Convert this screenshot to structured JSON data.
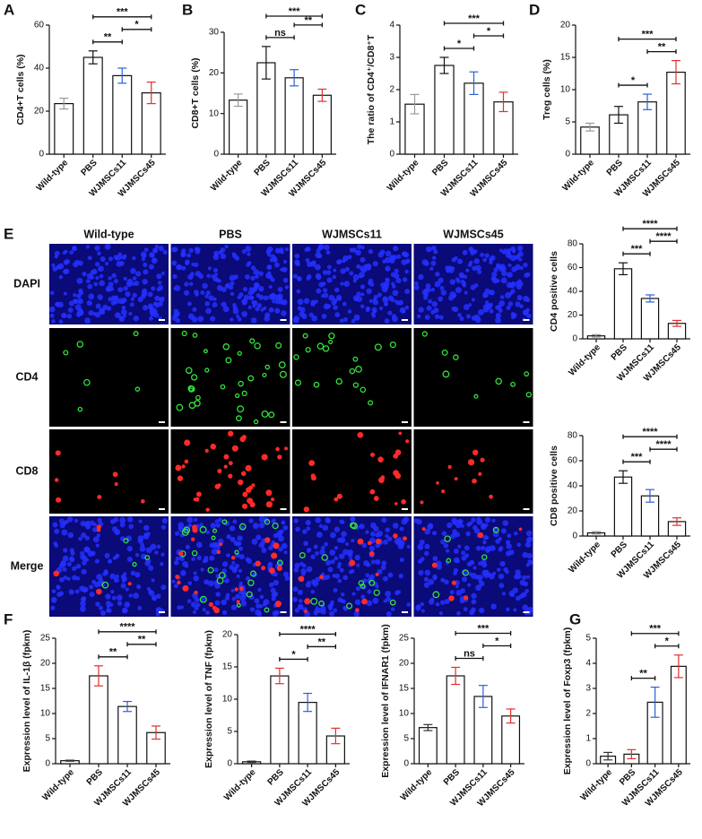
{
  "figure_e_images": {
    "panel": "E",
    "columns": [
      "Wild-type",
      "PBS",
      "WJMSCs11",
      "WJMSCs45"
    ],
    "rows": [
      "DAPI",
      "CD4",
      "CD8",
      "Merge"
    ]
  },
  "chart_data": [
    {
      "type": "bar",
      "panel": "A",
      "ylabel": "CD4+T cells (%)",
      "categories": [
        "Wild-type",
        "PBS",
        "WJMSCs11",
        "WJMSCs45"
      ],
      "values": [
        23.5,
        45,
        36.5,
        28.5
      ],
      "errors": [
        2.5,
        3,
        3.5,
        5
      ],
      "error_colors": [
        "#999999",
        "#111111",
        "#2d5fd6",
        "#e03030"
      ],
      "ylim": [
        0,
        60
      ],
      "yticks": [
        0,
        20,
        40,
        60
      ],
      "annotations": [
        {
          "label": "***",
          "from": "PBS",
          "to": "WJMSCs45"
        },
        {
          "label": "**",
          "from": "PBS",
          "to": "WJMSCs11"
        },
        {
          "label": "*",
          "from": "WJMSCs11",
          "to": "WJMSCs45"
        }
      ]
    },
    {
      "type": "bar",
      "panel": "B",
      "ylabel": "CD8+T cells (%)",
      "categories": [
        "Wild-type",
        "PBS",
        "WJMSCs11",
        "WJMSCs45"
      ],
      "values": [
        13.3,
        22.5,
        18.8,
        14.5
      ],
      "errors": [
        1.5,
        4,
        2,
        1.5
      ],
      "error_colors": [
        "#999999",
        "#111111",
        "#2d5fd6",
        "#e03030"
      ],
      "ylim": [
        0,
        30
      ],
      "yticks": [
        0,
        10,
        20,
        30
      ],
      "annotations": [
        {
          "label": "***",
          "from": "PBS",
          "to": "WJMSCs45"
        },
        {
          "label": "ns",
          "from": "PBS",
          "to": "WJMSCs11"
        },
        {
          "label": "**",
          "from": "WJMSCs11",
          "to": "WJMSCs45"
        }
      ]
    },
    {
      "type": "bar",
      "panel": "C",
      "ylabel": "The ratio of CD4⁺/CD8⁺T",
      "categories": [
        "Wild-type",
        "PBS",
        "WJMSCs11",
        "WJMSCs45"
      ],
      "values": [
        1.55,
        2.75,
        2.2,
        1.62
      ],
      "errors": [
        0.3,
        0.25,
        0.35,
        0.3
      ],
      "error_colors": [
        "#999999",
        "#111111",
        "#2d5fd6",
        "#e03030"
      ],
      "ylim": [
        0,
        4
      ],
      "yticks": [
        0,
        1,
        2,
        3,
        4
      ],
      "annotations": [
        {
          "label": "***",
          "from": "PBS",
          "to": "WJMSCs45"
        },
        {
          "label": "*",
          "from": "PBS",
          "to": "WJMSCs11"
        },
        {
          "label": "*",
          "from": "WJMSCs11",
          "to": "WJMSCs45"
        }
      ]
    },
    {
      "type": "bar",
      "panel": "D",
      "ylabel": "Treg cells (%)",
      "categories": [
        "Wild-type",
        "PBS",
        "WJMSCs11",
        "WJMSCs45"
      ],
      "values": [
        4.2,
        6.1,
        8.1,
        12.7
      ],
      "errors": [
        0.6,
        1.3,
        1.2,
        1.8
      ],
      "error_colors": [
        "#999999",
        "#111111",
        "#2d5fd6",
        "#e03030"
      ],
      "ylim": [
        0,
        20
      ],
      "yticks": [
        0,
        5,
        10,
        15,
        20
      ],
      "annotations": [
        {
          "label": "***",
          "from": "PBS",
          "to": "WJMSCs45"
        },
        {
          "label": "*",
          "from": "PBS",
          "to": "WJMSCs11"
        },
        {
          "label": "**",
          "from": "WJMSCs11",
          "to": "WJMSCs45"
        }
      ]
    },
    {
      "type": "bar",
      "ylabel": "CD4 positive cells",
      "categories": [
        "Wild-type",
        "PBS",
        "WJMSCs11",
        "WJMSCs45"
      ],
      "values": [
        2.5,
        59,
        34,
        13
      ],
      "errors": [
        1,
        5,
        3,
        2.5
      ],
      "error_colors": [
        "#999999",
        "#111111",
        "#2d5fd6",
        "#e03030"
      ],
      "ylim": [
        0,
        80
      ],
      "yticks": [
        0,
        20,
        40,
        60,
        80
      ],
      "annotations": [
        {
          "label": "****",
          "from": "PBS",
          "to": "WJMSCs45"
        },
        {
          "label": "***",
          "from": "PBS",
          "to": "WJMSCs11"
        },
        {
          "label": "****",
          "from": "WJMSCs11",
          "to": "WJMSCs45"
        }
      ]
    },
    {
      "type": "bar",
      "ylabel": "CD8 positive cells",
      "categories": [
        "Wild-type",
        "PBS",
        "WJMSCs11",
        "WJMSCs45"
      ],
      "values": [
        2.5,
        47,
        32,
        11.5
      ],
      "errors": [
        1,
        5,
        5,
        3
      ],
      "error_colors": [
        "#999999",
        "#111111",
        "#2d5fd6",
        "#e03030"
      ],
      "ylim": [
        0,
        80
      ],
      "yticks": [
        0,
        20,
        40,
        60,
        80
      ],
      "annotations": [
        {
          "label": "****",
          "from": "PBS",
          "to": "WJMSCs45"
        },
        {
          "label": "***",
          "from": "PBS",
          "to": "WJMSCs11"
        },
        {
          "label": "****",
          "from": "WJMSCs11",
          "to": "WJMSCs45"
        }
      ]
    },
    {
      "type": "bar",
      "panel": "F",
      "ylabel": "Expression level of IL-1β (fpkm)",
      "categories": [
        "Wild-type",
        "PBS",
        "WJMSCs11",
        "WJMSCs45"
      ],
      "values": [
        0.6,
        17.5,
        11.4,
        6.2
      ],
      "errors": [
        0.1,
        2,
        1,
        1.3
      ],
      "error_colors": [
        "#333333",
        "#e03030",
        "#2d5fd6",
        "#e03030"
      ],
      "ylim": [
        0,
        25
      ],
      "yticks": [
        0,
        5,
        10,
        15,
        20,
        25
      ],
      "annotations": [
        {
          "label": "****",
          "from": "PBS",
          "to": "WJMSCs45"
        },
        {
          "label": "**",
          "from": "PBS",
          "to": "WJMSCs11"
        },
        {
          "label": "**",
          "from": "WJMSCs11",
          "to": "WJMSCs45"
        }
      ]
    },
    {
      "type": "bar",
      "ylabel": "Expression level of TNF (fpkm)",
      "categories": [
        "Wild-type",
        "PBS",
        "WJMSCs11",
        "WJMSCs45"
      ],
      "values": [
        0.3,
        13.6,
        9.5,
        4.3
      ],
      "errors": [
        0.1,
        1.2,
        1.4,
        1.2
      ],
      "error_colors": [
        "#333333",
        "#e03030",
        "#2d5fd6",
        "#e03030"
      ],
      "ylim": [
        0,
        20
      ],
      "yticks": [
        0,
        5,
        10,
        15,
        20
      ],
      "annotations": [
        {
          "label": "****",
          "from": "PBS",
          "to": "WJMSCs45"
        },
        {
          "label": "*",
          "from": "PBS",
          "to": "WJMSCs11"
        },
        {
          "label": "**",
          "from": "WJMSCs11",
          "to": "WJMSCs45"
        }
      ]
    },
    {
      "type": "bar",
      "ylabel": "Expression level of IFNAR1 (fpkm)",
      "categories": [
        "Wild-type",
        "PBS",
        "WJMSCs11",
        "WJMSCs45"
      ],
      "values": [
        7.2,
        17.5,
        13.4,
        9.5
      ],
      "errors": [
        0.6,
        1.7,
        2.2,
        1.4
      ],
      "error_colors": [
        "#333333",
        "#e03030",
        "#2d5fd6",
        "#e03030"
      ],
      "ylim": [
        0,
        25
      ],
      "yticks": [
        0,
        5,
        10,
        15,
        20,
        25
      ],
      "annotations": [
        {
          "label": "***",
          "from": "PBS",
          "to": "WJMSCs45"
        },
        {
          "label": "ns",
          "from": "PBS",
          "to": "WJMSCs11"
        },
        {
          "label": "*",
          "from": "WJMSCs11",
          "to": "WJMSCs45"
        }
      ]
    },
    {
      "type": "bar",
      "panel": "G",
      "ylabel": "Expression level of Foxp3 (fpkm)",
      "categories": [
        "Wild-type",
        "PBS",
        "WJMSCs11",
        "WJMSCs45"
      ],
      "values": [
        0.3,
        0.38,
        2.45,
        3.88
      ],
      "errors": [
        0.15,
        0.18,
        0.6,
        0.45
      ],
      "error_colors": [
        "#333333",
        "#e03030",
        "#2d5fd6",
        "#e03030"
      ],
      "ylim": [
        0,
        5
      ],
      "yticks": [
        0,
        1,
        2,
        3,
        4,
        5
      ],
      "annotations": [
        {
          "label": "***",
          "from": "PBS",
          "to": "WJMSCs45"
        },
        {
          "label": "**",
          "from": "PBS",
          "to": "WJMSCs11"
        },
        {
          "label": "*",
          "from": "WJMSCs11",
          "to": "WJMSCs45"
        }
      ]
    }
  ]
}
